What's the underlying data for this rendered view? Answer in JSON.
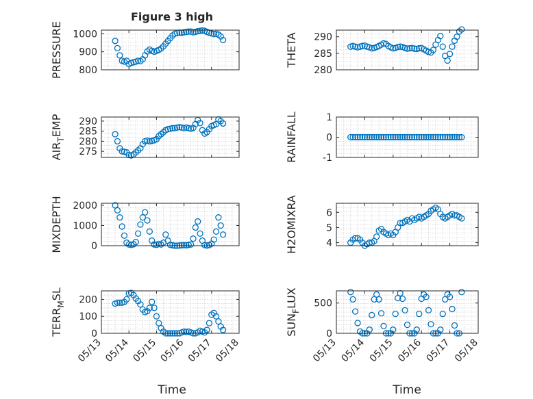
{
  "figure": {
    "title": "Figure 3 high",
    "xlabel": "Time",
    "xticks": [
      "05/13",
      "05/14",
      "05/15",
      "05/16",
      "05/17",
      "05/18"
    ]
  },
  "colors": {
    "marker": "#0072BD",
    "axis": "#262626",
    "grid": "#d0d0d0"
  },
  "chart_data": [
    {
      "type": "scatter",
      "ylabel": "PRESSURE",
      "ylim": [
        800,
        1020
      ],
      "yticks": [
        "800",
        "900",
        "1000"
      ],
      "x": [
        "05/13 12:00",
        "05/13 14:00",
        "05/13 16:00",
        "05/13 18:00",
        "05/13 20:00",
        "05/13 22:00",
        "05/14 00:00",
        "05/14 02:00",
        "05/14 04:00",
        "05/14 06:00",
        "05/14 08:00",
        "05/14 10:00",
        "05/14 12:00",
        "05/14 14:00",
        "05/14 16:00",
        "05/14 18:00",
        "05/14 20:00",
        "05/14 22:00",
        "05/15 00:00",
        "05/15 02:00",
        "05/15 04:00",
        "05/15 06:00",
        "05/15 08:00",
        "05/15 10:00",
        "05/15 12:00",
        "05/15 14:00",
        "05/15 16:00",
        "05/15 18:00",
        "05/15 20:00",
        "05/15 22:00",
        "05/16 00:00",
        "05/16 02:00",
        "05/16 04:00",
        "05/16 06:00",
        "05/16 08:00",
        "05/16 10:00",
        "05/16 12:00",
        "05/16 14:00",
        "05/16 16:00",
        "05/16 18:00",
        "05/16 20:00",
        "05/16 22:00",
        "05/17 00:00",
        "05/17 02:00",
        "05/17 04:00",
        "05/17 06:00",
        "05/17 08:00",
        "05/17 10:00"
      ],
      "y": [
        960,
        920,
        880,
        850,
        845,
        850,
        832,
        838,
        842,
        845,
        850,
        848,
        858,
        880,
        902,
        912,
        905,
        900,
        905,
        910,
        918,
        930,
        945,
        960,
        975,
        990,
        1000,
        1004,
        1006,
        1005,
        1008,
        1010,
        1012,
        1012,
        1008,
        1010,
        1014,
        1016,
        1018,
        1016,
        1010,
        1005,
        1002,
        998,
        1000,
        995,
        985,
        965
      ]
    },
    {
      "type": "scatter",
      "ylabel": "THETA",
      "ylim": [
        280,
        292
      ],
      "yticks": [
        "280",
        "285",
        "290"
      ],
      "x": [
        "05/13 12:00",
        "05/13 14:00",
        "05/13 16:00",
        "05/13 18:00",
        "05/13 20:00",
        "05/13 22:00",
        "05/14 00:00",
        "05/14 02:00",
        "05/14 04:00",
        "05/14 06:00",
        "05/14 08:00",
        "05/14 10:00",
        "05/14 12:00",
        "05/14 14:00",
        "05/14 16:00",
        "05/14 18:00",
        "05/14 20:00",
        "05/14 22:00",
        "05/15 00:00",
        "05/15 02:00",
        "05/15 04:00",
        "05/15 06:00",
        "05/15 08:00",
        "05/15 10:00",
        "05/15 12:00",
        "05/15 14:00",
        "05/15 16:00",
        "05/15 18:00",
        "05/15 20:00",
        "05/15 22:00",
        "05/16 00:00",
        "05/16 02:00",
        "05/16 04:00",
        "05/16 06:00",
        "05/16 08:00",
        "05/16 10:00",
        "05/16 12:00",
        "05/16 14:00",
        "05/16 16:00",
        "05/16 18:00",
        "05/16 20:00",
        "05/16 22:00",
        "05/17 00:00",
        "05/17 02:00",
        "05/17 04:00",
        "05/17 06:00",
        "05/17 08:00",
        "05/17 10:00"
      ],
      "y": [
        287,
        287.2,
        287,
        286.8,
        287,
        287.2,
        287.3,
        287,
        286.8,
        286.5,
        286.6,
        286.9,
        287.2,
        287.6,
        288,
        287.8,
        287.2,
        286.8,
        286.5,
        286.6,
        286.9,
        287,
        286.9,
        286.6,
        286.4,
        286.5,
        286.6,
        286.4,
        286.3,
        286.5,
        286.6,
        286.2,
        285.8,
        285.4,
        285.2,
        286,
        287.6,
        289,
        290.2,
        287,
        284.2,
        282.8,
        284.8,
        287,
        288.8,
        290,
        291.6,
        292.2
      ]
    },
    {
      "type": "scatter",
      "ylabel": "AIR_TEMP",
      "ylim": [
        272,
        292
      ],
      "yticks": [
        "275",
        "280",
        "285",
        "290"
      ],
      "x": [
        "05/13 12:00",
        "05/13 14:00",
        "05/13 16:00",
        "05/13 18:00",
        "05/13 20:00",
        "05/13 22:00",
        "05/14 00:00",
        "05/14 02:00",
        "05/14 04:00",
        "05/14 06:00",
        "05/14 08:00",
        "05/14 10:00",
        "05/14 12:00",
        "05/14 14:00",
        "05/14 16:00",
        "05/14 18:00",
        "05/14 20:00",
        "05/14 22:00",
        "05/15 00:00",
        "05/15 02:00",
        "05/15 04:00",
        "05/15 06:00",
        "05/15 08:00",
        "05/15 10:00",
        "05/15 12:00",
        "05/15 14:00",
        "05/15 16:00",
        "05/15 18:00",
        "05/15 20:00",
        "05/15 22:00",
        "05/16 00:00",
        "05/16 02:00",
        "05/16 04:00",
        "05/16 06:00",
        "05/16 08:00",
        "05/16 10:00",
        "05/16 12:00",
        "05/16 14:00",
        "05/16 16:00",
        "05/16 18:00",
        "05/16 20:00",
        "05/16 22:00",
        "05/17 00:00",
        "05/17 02:00",
        "05/17 04:00",
        "05/17 06:00",
        "05/17 08:00",
        "05/17 10:00"
      ],
      "y": [
        283.5,
        280,
        276.5,
        275,
        274.8,
        274.5,
        273.2,
        273,
        273.5,
        274.5,
        275.5,
        276.5,
        278.5,
        280,
        280.3,
        280,
        280.2,
        280.5,
        281,
        282.5,
        283.5,
        284.5,
        285.5,
        286,
        286.2,
        286.5,
        286.5,
        286.8,
        287,
        286.8,
        286.5,
        286.8,
        286.5,
        286.2,
        286.6,
        288.5,
        290.5,
        289,
        285.5,
        283.8,
        284.5,
        286,
        287.5,
        288,
        288.5,
        290.8,
        290,
        288.8
      ]
    },
    {
      "type": "scatter",
      "ylabel": "RAINFALL",
      "ylim": [
        -1,
        1
      ],
      "yticks": [
        "-1",
        "0",
        "1"
      ],
      "x": [
        "05/13 12:00",
        "05/13 14:00",
        "05/13 16:00",
        "05/13 18:00",
        "05/13 20:00",
        "05/13 22:00",
        "05/14 00:00",
        "05/14 02:00",
        "05/14 04:00",
        "05/14 06:00",
        "05/14 08:00",
        "05/14 10:00",
        "05/14 12:00",
        "05/14 14:00",
        "05/14 16:00",
        "05/14 18:00",
        "05/14 20:00",
        "05/14 22:00",
        "05/15 00:00",
        "05/15 02:00",
        "05/15 04:00",
        "05/15 06:00",
        "05/15 08:00",
        "05/15 10:00",
        "05/15 12:00",
        "05/15 14:00",
        "05/15 16:00",
        "05/15 18:00",
        "05/15 20:00",
        "05/15 22:00",
        "05/16 00:00",
        "05/16 02:00",
        "05/16 04:00",
        "05/16 06:00",
        "05/16 08:00",
        "05/16 10:00",
        "05/16 12:00",
        "05/16 14:00",
        "05/16 16:00",
        "05/16 18:00",
        "05/16 20:00",
        "05/16 22:00",
        "05/17 00:00",
        "05/17 02:00",
        "05/17 04:00",
        "05/17 06:00",
        "05/17 08:00",
        "05/17 10:00"
      ],
      "y": [
        0,
        0,
        0,
        0,
        0,
        0,
        0,
        0,
        0,
        0,
        0,
        0,
        0,
        0,
        0,
        0,
        0,
        0,
        0,
        0,
        0,
        0,
        0,
        0,
        0,
        0,
        0,
        0,
        0,
        0,
        0,
        0,
        0,
        0,
        0,
        0,
        0,
        0,
        0,
        0,
        0,
        0,
        0,
        0,
        0,
        0,
        0,
        0
      ]
    },
    {
      "type": "scatter",
      "ylabel": "MIXDEPTH",
      "ylim": [
        0,
        2100
      ],
      "yticks": [
        "0",
        "1000",
        "2000"
      ],
      "x": [
        "05/13 12:00",
        "05/13 14:00",
        "05/13 16:00",
        "05/13 18:00",
        "05/13 20:00",
        "05/13 22:00",
        "05/14 00:00",
        "05/14 02:00",
        "05/14 04:00",
        "05/14 06:00",
        "05/14 08:00",
        "05/14 10:00",
        "05/14 12:00",
        "05/14 14:00",
        "05/14 16:00",
        "05/14 18:00",
        "05/14 20:00",
        "05/14 22:00",
        "05/15 00:00",
        "05/15 02:00",
        "05/15 04:00",
        "05/15 06:00",
        "05/15 08:00",
        "05/15 10:00",
        "05/15 12:00",
        "05/15 14:00",
        "05/15 16:00",
        "05/15 18:00",
        "05/15 20:00",
        "05/15 22:00",
        "05/16 00:00",
        "05/16 02:00",
        "05/16 04:00",
        "05/16 06:00",
        "05/16 08:00",
        "05/16 10:00",
        "05/16 12:00",
        "05/16 14:00",
        "05/16 16:00",
        "05/16 18:00",
        "05/16 20:00",
        "05/16 22:00",
        "05/17 00:00",
        "05/17 02:00",
        "05/17 04:00",
        "05/17 06:00",
        "05/17 08:00",
        "05/17 10:00"
      ],
      "y": [
        2000,
        1750,
        1400,
        950,
        500,
        150,
        60,
        40,
        70,
        180,
        600,
        1050,
        1400,
        1650,
        1250,
        700,
        250,
        60,
        40,
        90,
        60,
        150,
        550,
        250,
        40,
        20,
        0,
        0,
        10,
        20,
        30,
        20,
        40,
        60,
        350,
        900,
        1200,
        600,
        250,
        30,
        10,
        30,
        100,
        300,
        700,
        1400,
        1000,
        550
      ]
    },
    {
      "type": "scatter",
      "ylabel": "H2OMIXRA",
      "ylim": [
        3.8,
        6.6
      ],
      "yticks": [
        "4",
        "5",
        "6"
      ],
      "x": [
        "05/13 12:00",
        "05/13 14:00",
        "05/13 16:00",
        "05/13 18:00",
        "05/13 20:00",
        "05/13 22:00",
        "05/14 00:00",
        "05/14 02:00",
        "05/14 04:00",
        "05/14 06:00",
        "05/14 08:00",
        "05/14 10:00",
        "05/14 12:00",
        "05/14 14:00",
        "05/14 16:00",
        "05/14 18:00",
        "05/14 20:00",
        "05/14 22:00",
        "05/15 00:00",
        "05/15 02:00",
        "05/15 04:00",
        "05/15 06:00",
        "05/15 08:00",
        "05/15 10:00",
        "05/15 12:00",
        "05/15 14:00",
        "05/15 16:00",
        "05/15 18:00",
        "05/15 20:00",
        "05/15 22:00",
        "05/16 00:00",
        "05/16 02:00",
        "05/16 04:00",
        "05/16 06:00",
        "05/16 08:00",
        "05/16 10:00",
        "05/16 12:00",
        "05/16 14:00",
        "05/16 16:00",
        "05/16 18:00",
        "05/16 20:00",
        "05/16 22:00",
        "05/17 00:00",
        "05/17 02:00",
        "05/17 04:00",
        "05/17 06:00",
        "05/17 08:00",
        "05/17 10:00"
      ],
      "y": [
        4.0,
        4.2,
        4.3,
        4.3,
        4.2,
        4.0,
        3.8,
        3.9,
        4.0,
        4.0,
        4.1,
        4.4,
        4.8,
        4.9,
        4.7,
        4.6,
        4.5,
        4.6,
        4.5,
        4.7,
        5.0,
        5.3,
        5.3,
        5.4,
        5.5,
        5.4,
        5.6,
        5.5,
        5.6,
        5.7,
        5.6,
        5.7,
        5.8,
        5.9,
        6.1,
        6.2,
        6.3,
        6.2,
        5.9,
        5.7,
        5.6,
        5.7,
        5.8,
        5.9,
        5.8,
        5.8,
        5.7,
        5.6
      ]
    },
    {
      "type": "scatter",
      "ylabel": "TERR_MSL",
      "ylim": [
        0,
        250
      ],
      "yticks": [
        "0",
        "100",
        "200"
      ],
      "x": [
        "05/13 12:00",
        "05/13 14:00",
        "05/13 16:00",
        "05/13 18:00",
        "05/13 20:00",
        "05/13 22:00",
        "05/14 00:00",
        "05/14 02:00",
        "05/14 04:00",
        "05/14 06:00",
        "05/14 08:00",
        "05/14 10:00",
        "05/14 12:00",
        "05/14 14:00",
        "05/14 16:00",
        "05/14 18:00",
        "05/14 20:00",
        "05/14 22:00",
        "05/15 00:00",
        "05/15 02:00",
        "05/15 04:00",
        "05/15 06:00",
        "05/15 08:00",
        "05/15 10:00",
        "05/15 12:00",
        "05/15 14:00",
        "05/15 16:00",
        "05/15 18:00",
        "05/15 20:00",
        "05/15 22:00",
        "05/16 00:00",
        "05/16 02:00",
        "05/16 04:00",
        "05/16 06:00",
        "05/16 08:00",
        "05/16 10:00",
        "05/16 12:00",
        "05/16 14:00",
        "05/16 16:00",
        "05/16 18:00",
        "05/16 20:00",
        "05/16 22:00",
        "05/17 00:00",
        "05/17 02:00",
        "05/17 04:00",
        "05/17 06:00",
        "05/17 08:00",
        "05/17 10:00"
      ],
      "y": [
        175,
        180,
        180,
        180,
        185,
        200,
        235,
        238,
        225,
        205,
        190,
        170,
        140,
        125,
        130,
        150,
        185,
        150,
        100,
        60,
        30,
        10,
        0,
        0,
        0,
        0,
        0,
        0,
        0,
        5,
        10,
        8,
        10,
        5,
        0,
        0,
        5,
        15,
        10,
        5,
        20,
        60,
        110,
        120,
        100,
        70,
        40,
        20
      ]
    },
    {
      "type": "scatter",
      "ylabel": "SUN_FLUX",
      "ylim": [
        0,
        700
      ],
      "yticks": [
        "0",
        "500"
      ],
      "x": [
        "05/13 12:00",
        "05/13 14:00",
        "05/13 16:00",
        "05/13 18:00",
        "05/13 20:00",
        "05/13 22:00",
        "05/14 00:00",
        "05/14 02:00",
        "05/14 04:00",
        "05/14 06:00",
        "05/14 08:00",
        "05/14 10:00",
        "05/14 12:00",
        "05/14 14:00",
        "05/14 16:00",
        "05/14 18:00",
        "05/14 20:00",
        "05/14 22:00",
        "05/15 00:00",
        "05/15 02:00",
        "05/15 04:00",
        "05/15 06:00",
        "05/15 08:00",
        "05/15 10:00",
        "05/15 12:00",
        "05/15 14:00",
        "05/15 16:00",
        "05/15 18:00",
        "05/15 20:00",
        "05/15 22:00",
        "05/16 00:00",
        "05/16 02:00",
        "05/16 04:00",
        "05/16 06:00",
        "05/16 08:00",
        "05/16 10:00",
        "05/16 12:00",
        "05/16 14:00",
        "05/16 16:00",
        "05/16 18:00",
        "05/16 20:00",
        "05/16 22:00",
        "05/17 00:00",
        "05/17 02:00",
        "05/17 04:00",
        "05/17 06:00",
        "05/17 08:00",
        "05/17 10:00"
      ],
      "y": [
        680,
        560,
        360,
        170,
        30,
        0,
        0,
        0,
        60,
        300,
        560,
        640,
        560,
        330,
        120,
        0,
        0,
        0,
        60,
        320,
        580,
        660,
        570,
        380,
        140,
        0,
        0,
        0,
        60,
        320,
        570,
        640,
        600,
        380,
        150,
        0,
        0,
        0,
        60,
        320,
        560,
        640,
        600,
        400,
        130,
        0,
        0,
        680
      ]
    }
  ]
}
